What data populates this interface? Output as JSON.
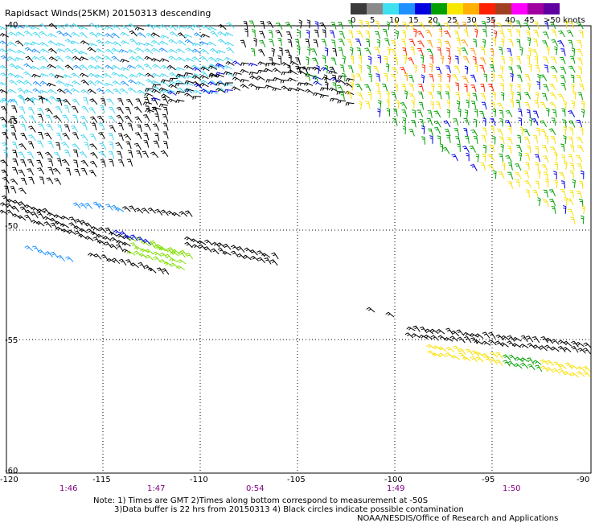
{
  "title": "Rapidsact Winds(25KM) 20150313 descending",
  "colorbar": {
    "labels": [
      "0",
      "5",
      "10",
      "15",
      "20",
      "25",
      "30",
      "35",
      "40",
      "45",
      ">50 knots"
    ],
    "colors": [
      "#3a3a3a",
      "#8a8a8a",
      "#3fe0f0",
      "#1e90ff",
      "#0000e0",
      "#00a000",
      "#f8e800",
      "#ffb000",
      "#ff2000",
      "#a04020",
      "#ff00ff",
      "#a000a0",
      "#6000a0"
    ]
  },
  "map": {
    "lat_labels": [
      "-40",
      "-45",
      "-50",
      "-55",
      "-60"
    ],
    "lon_labels": [
      "-120",
      "-115",
      "-110",
      "-105",
      "-100",
      "-95",
      "-90"
    ],
    "time_labels": [
      "1:46",
      "1:47",
      "0:54",
      "1:49",
      "1:50"
    ]
  },
  "notes": {
    "line1": "Note: 1) Times are GMT 2)Times along bottom correspond to measurement at -50S",
    "line2": "3)Data buffer is 22 hrs from 20150313 4) Black circles indicate possible contamination",
    "line3": "NOAA/NESDIS/Office of Research and Applications"
  }
}
